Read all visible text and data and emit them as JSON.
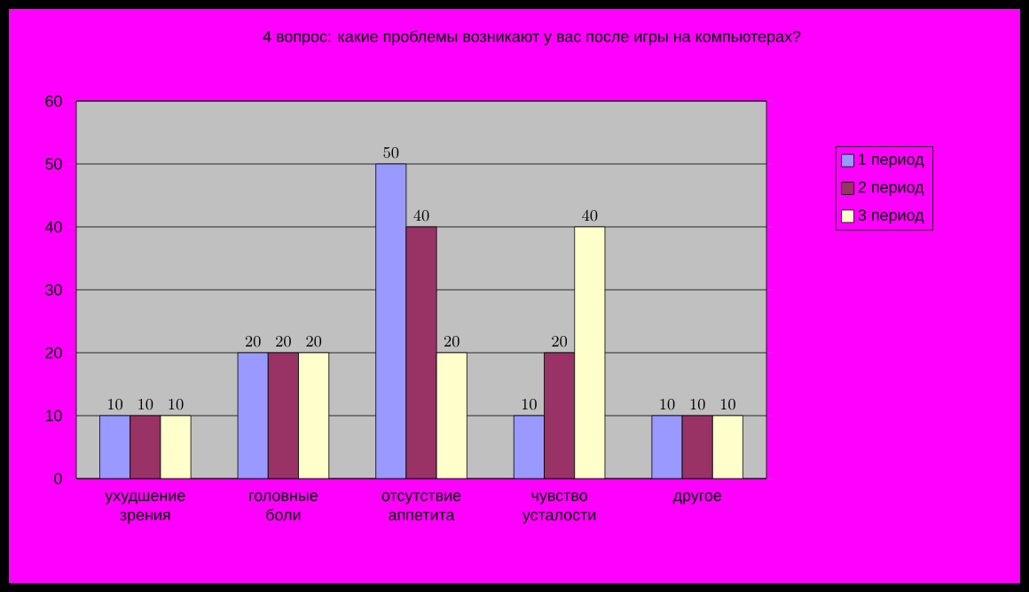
{
  "chart_data": {
    "type": "bar",
    "title": "4 вопрос: какие проблемы возникают у вас после игры на компьютерах?",
    "categories": [
      "ухудшение зрения",
      "головные боли",
      "отсутствие аппетита",
      "чувство усталости",
      "другое"
    ],
    "series": [
      {
        "name": "1 период",
        "color": "#9999ff",
        "values": [
          10,
          20,
          50,
          10,
          10
        ]
      },
      {
        "name": "2 период",
        "color": "#993366",
        "values": [
          10,
          20,
          40,
          20,
          10
        ]
      },
      {
        "name": "3 период",
        "color": "#ffffcc",
        "values": [
          10,
          20,
          20,
          40,
          10
        ]
      }
    ],
    "ylim": [
      0,
      60
    ],
    "yticks": [
      0,
      10,
      20,
      30,
      40,
      50,
      60
    ],
    "grid": "y",
    "legend": "right",
    "data_labels": true
  }
}
